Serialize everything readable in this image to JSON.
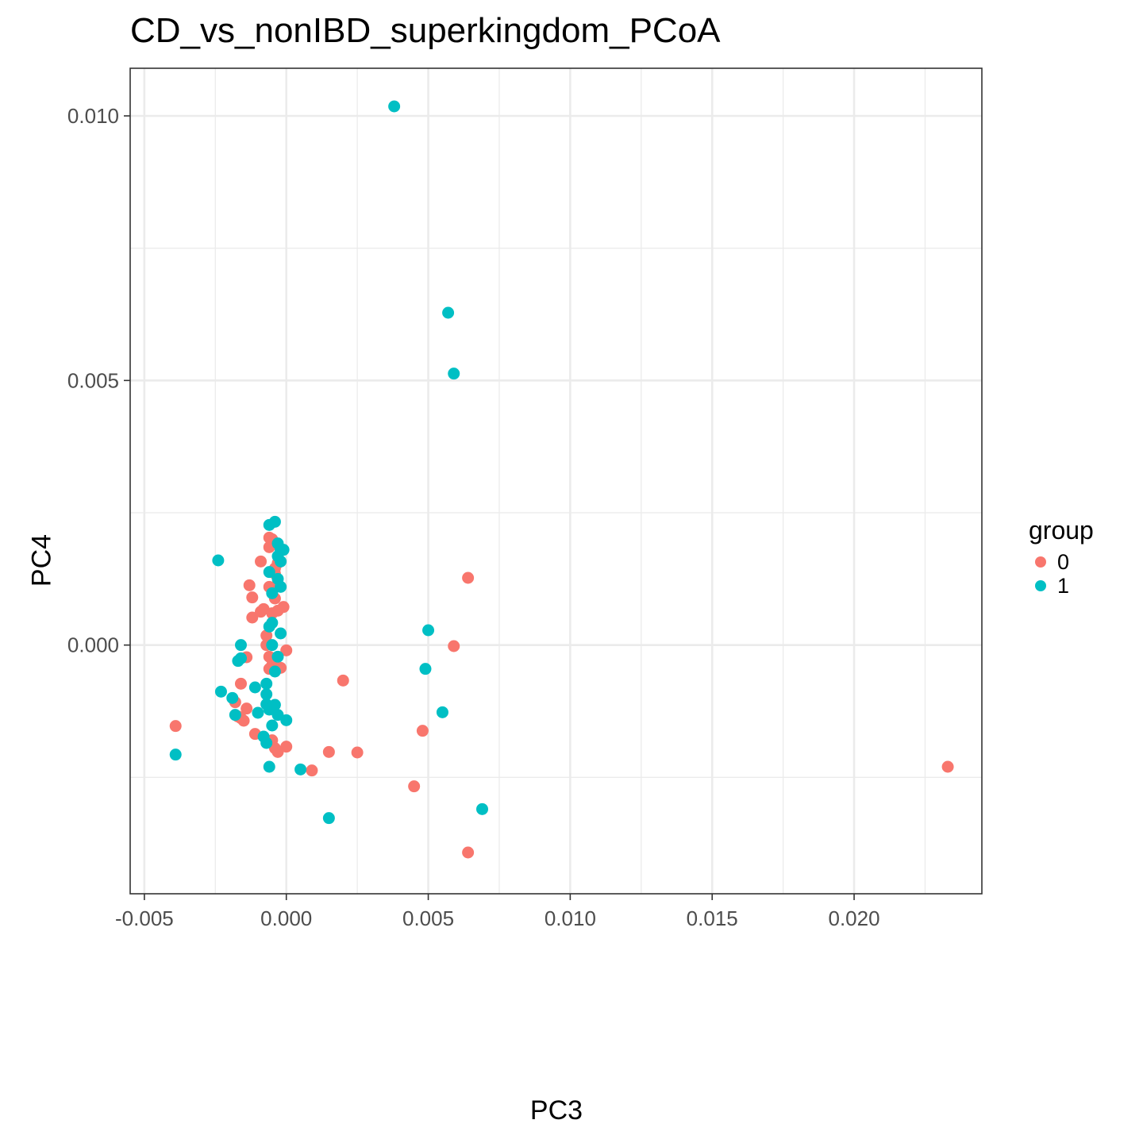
{
  "chart_data": {
    "type": "scatter",
    "title": "CD_vs_nonIBD_superkingdom_PCoA",
    "xlabel": "PC3",
    "ylabel": "PC4",
    "xlim": [
      -0.0055,
      0.0245
    ],
    "ylim": [
      -0.0047,
      0.0109
    ],
    "x_ticks": [
      -0.005,
      0.0,
      0.005,
      0.01,
      0.015,
      0.02
    ],
    "x_tick_labels": [
      "-0.005",
      "0.000",
      "0.005",
      "0.010",
      "0.015",
      "0.020"
    ],
    "y_ticks": [
      0.0,
      0.005,
      0.01
    ],
    "y_tick_labels": [
      "0.000",
      "0.005",
      "0.010"
    ],
    "grid": true,
    "legend": {
      "title": "group",
      "position": "right"
    },
    "series": [
      {
        "name": "0",
        "color": "#F8766D",
        "points": [
          [
            23.3,
            -2.3
          ],
          [
            6.4,
            1.27
          ],
          [
            5.9,
            -0.02
          ],
          [
            4.8,
            -1.62
          ],
          [
            4.5,
            -2.67
          ],
          [
            6.4,
            -3.92
          ],
          [
            2.5,
            -2.03
          ],
          [
            1.5,
            -2.02
          ],
          [
            0.9,
            -2.37
          ],
          [
            2.0,
            -0.67
          ],
          [
            0.0,
            -0.1
          ],
          [
            -0.2,
            -0.43
          ],
          [
            0.0,
            -1.92
          ],
          [
            -0.3,
            -2.02
          ],
          [
            -0.5,
            -1.8
          ],
          [
            -0.4,
            -1.95
          ],
          [
            -3.9,
            -1.53
          ],
          [
            -1.6,
            -0.73
          ],
          [
            -1.4,
            -1.2
          ],
          [
            -1.6,
            -1.38
          ],
          [
            -1.8,
            -1.08
          ],
          [
            -1.7,
            -1.35
          ],
          [
            -1.5,
            -1.43
          ],
          [
            -1.1,
            -1.68
          ],
          [
            -1.4,
            -0.23
          ],
          [
            -1.2,
            0.52
          ],
          [
            -1.2,
            0.9
          ],
          [
            -1.3,
            1.13
          ],
          [
            -0.9,
            0.63
          ],
          [
            -0.8,
            0.68
          ],
          [
            -0.5,
            0.6
          ],
          [
            -0.3,
            0.65
          ],
          [
            -0.1,
            0.72
          ],
          [
            -0.4,
            0.88
          ],
          [
            -0.6,
            1.1
          ],
          [
            -0.4,
            1.35
          ],
          [
            -0.3,
            1.55
          ],
          [
            -0.9,
            1.58
          ],
          [
            -0.6,
            1.85
          ],
          [
            -0.5,
            2.0
          ],
          [
            -0.6,
            2.03
          ],
          [
            -0.7,
            0.18
          ],
          [
            -0.7,
            0.0
          ],
          [
            -0.6,
            -0.22
          ],
          [
            -0.5,
            -0.38
          ],
          [
            -0.6,
            -0.45
          ],
          [
            -0.4,
            1.45
          ],
          [
            -0.3,
            1.15
          ]
        ]
      },
      {
        "name": "1",
        "color": "#00BFC4",
        "points": [
          [
            3.8,
            10.18
          ],
          [
            5.7,
            6.28
          ],
          [
            5.9,
            5.13
          ],
          [
            5.0,
            0.28
          ],
          [
            4.9,
            -0.45
          ],
          [
            5.5,
            -1.27
          ],
          [
            6.9,
            -3.1
          ],
          [
            1.5,
            -3.27
          ],
          [
            0.5,
            -2.35
          ],
          [
            -0.6,
            -2.3
          ],
          [
            -3.9,
            -2.07
          ],
          [
            -2.4,
            1.6
          ],
          [
            -2.3,
            -0.88
          ],
          [
            -1.9,
            -1.0
          ],
          [
            -1.8,
            -1.32
          ],
          [
            -1.7,
            -0.3
          ],
          [
            -1.6,
            -0.25
          ],
          [
            -1.6,
            0.0
          ],
          [
            -1.1,
            -0.8
          ],
          [
            -1.0,
            -1.28
          ],
          [
            -0.8,
            -1.73
          ],
          [
            -0.7,
            -1.85
          ],
          [
            -0.5,
            -1.52
          ],
          [
            -0.7,
            -1.12
          ],
          [
            -0.7,
            -0.93
          ],
          [
            -0.7,
            -0.73
          ],
          [
            -0.6,
            -1.22
          ],
          [
            -0.4,
            -1.13
          ],
          [
            -0.3,
            -1.32
          ],
          [
            0.0,
            -1.42
          ],
          [
            -0.4,
            -0.5
          ],
          [
            -0.3,
            -0.22
          ],
          [
            -0.5,
            0.0
          ],
          [
            -0.2,
            0.22
          ],
          [
            -0.5,
            0.42
          ],
          [
            -0.6,
            0.35
          ],
          [
            -0.3,
            1.25
          ],
          [
            -0.2,
            1.1
          ],
          [
            -0.6,
            1.38
          ],
          [
            -0.2,
            1.8
          ],
          [
            -0.3,
            1.92
          ],
          [
            -0.1,
            1.8
          ],
          [
            -0.6,
            2.27
          ],
          [
            -0.4,
            2.33
          ],
          [
            -0.5,
            0.98
          ],
          [
            -0.3,
            1.68
          ],
          [
            -0.2,
            1.58
          ]
        ]
      }
    ],
    "x_unit_scale": 0.001,
    "y_unit_scale": 0.001
  }
}
